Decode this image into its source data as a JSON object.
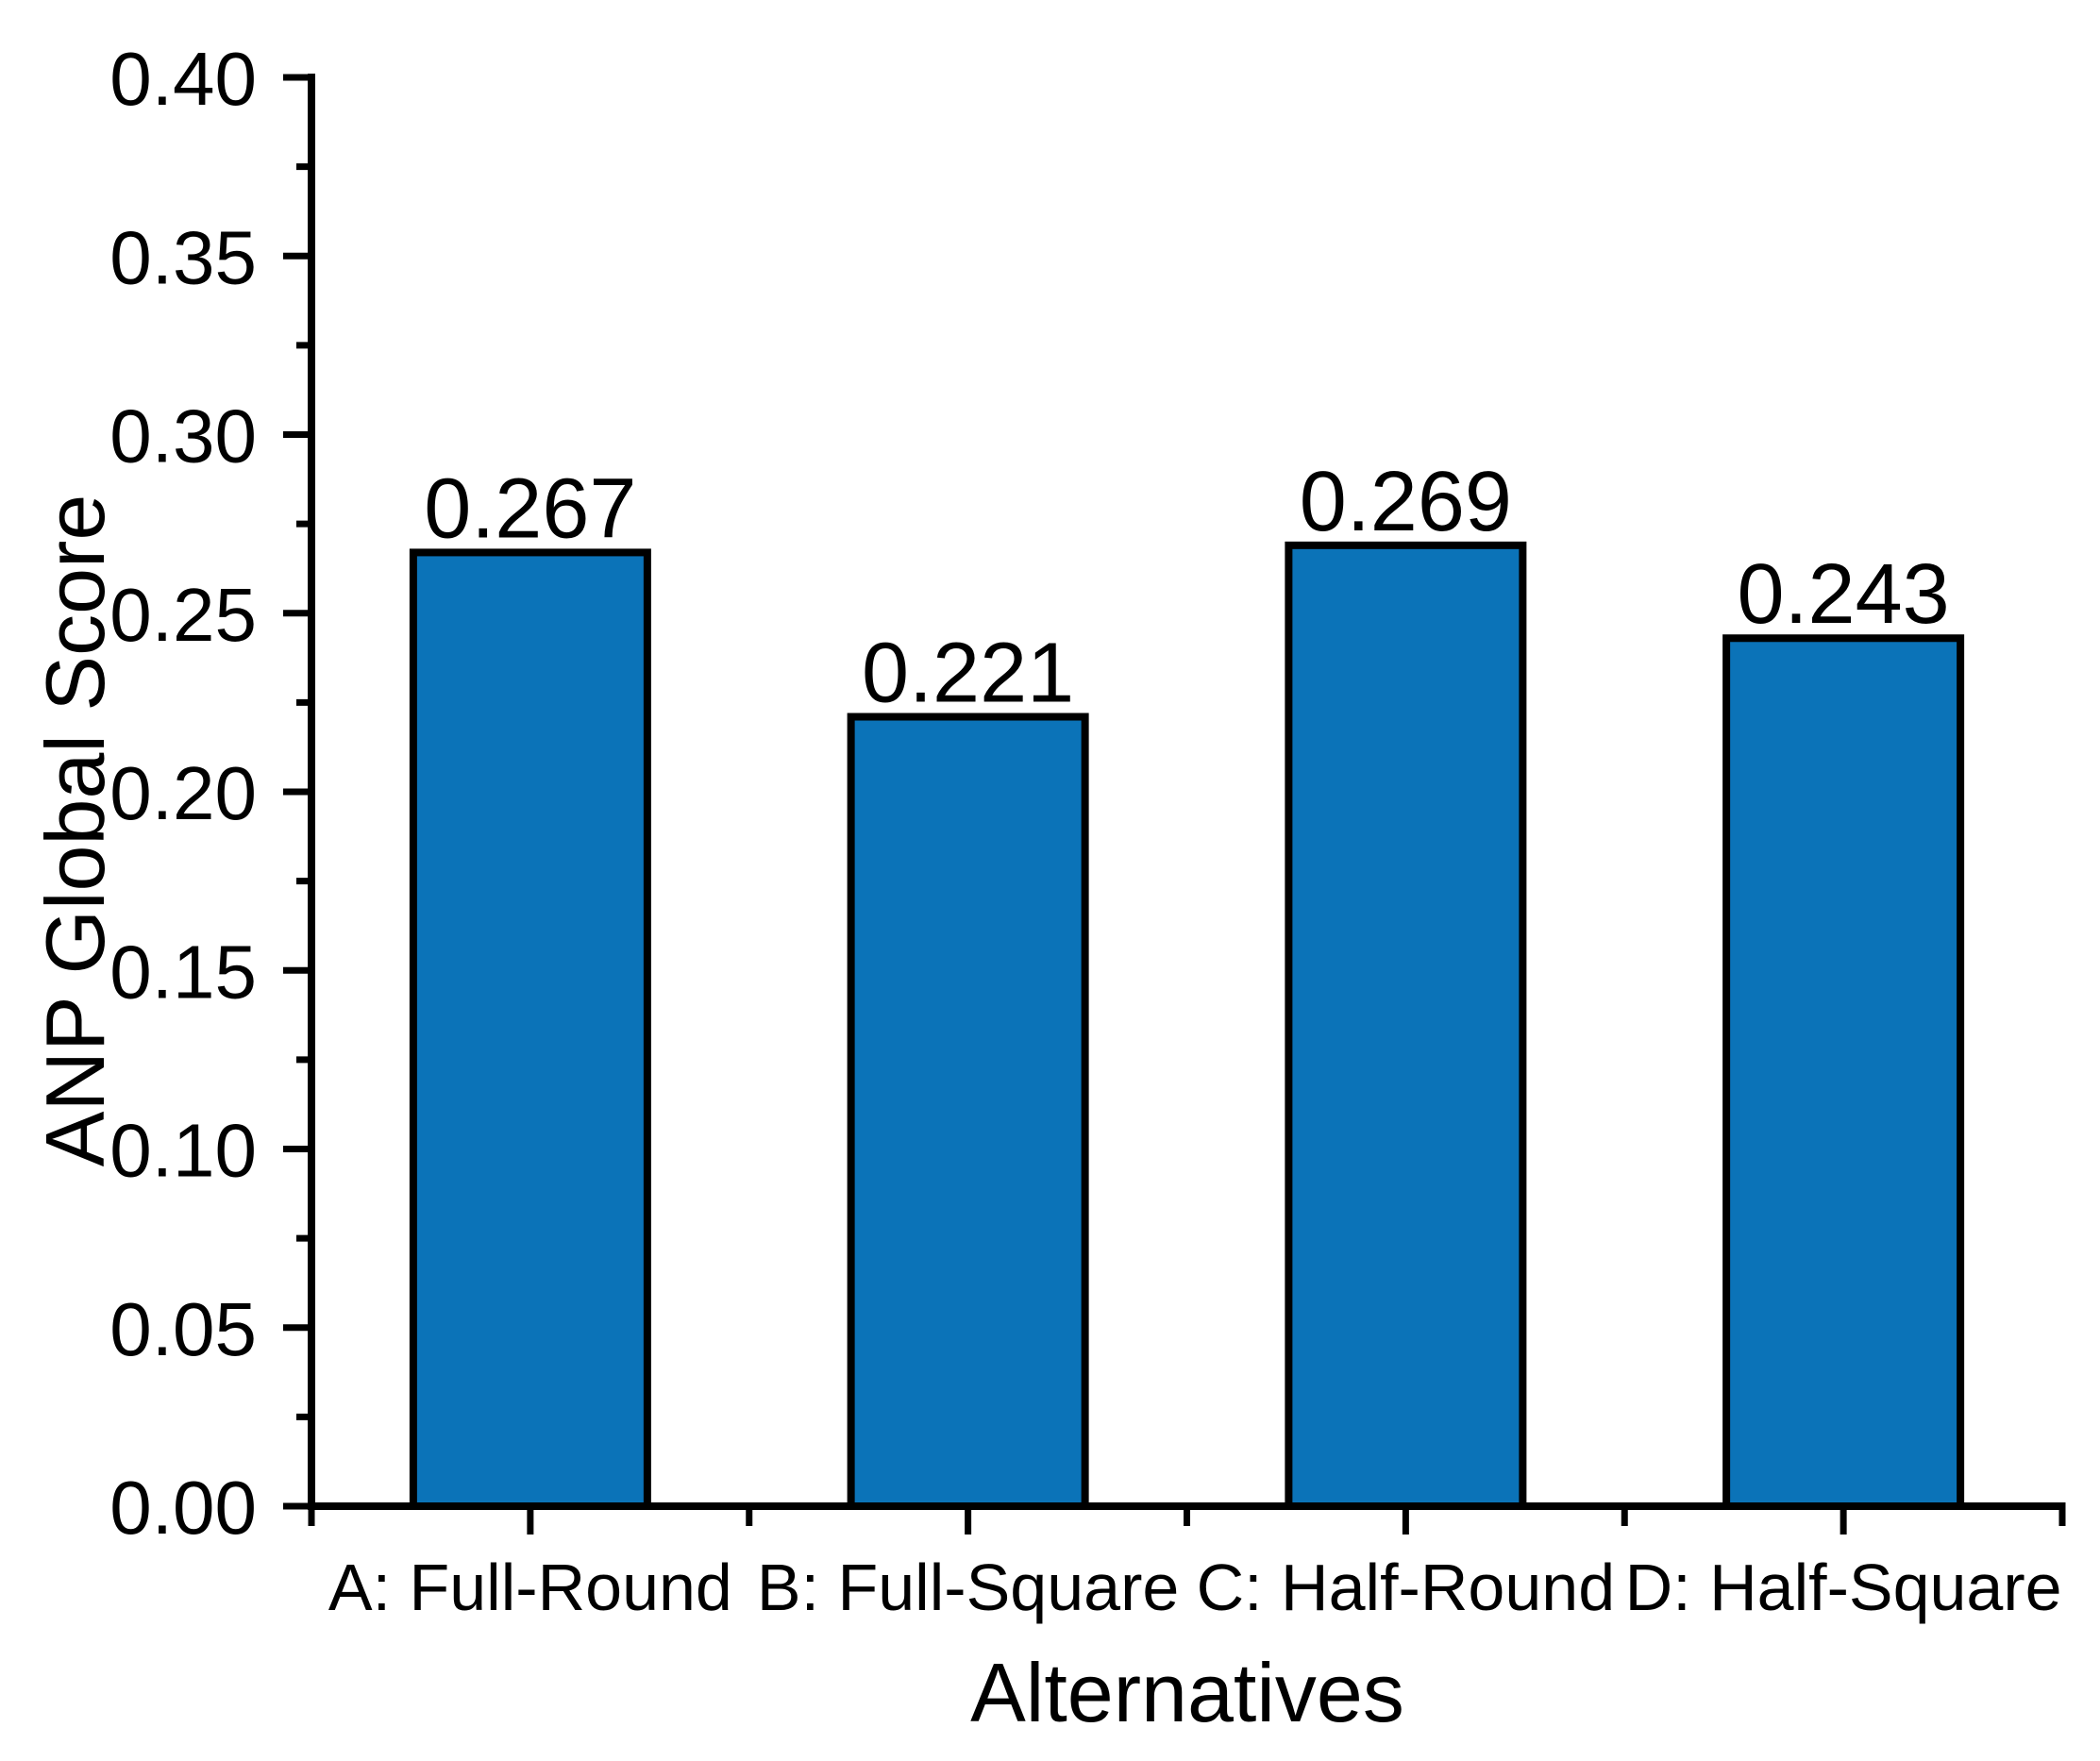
{
  "chart_data": {
    "type": "bar",
    "title": "",
    "categories": [
      "A: Full-Round",
      "B: Full-Square",
      "C: Half-Round",
      "D: Half-Square"
    ],
    "values": [
      0.267,
      0.221,
      0.269,
      0.243
    ],
    "bar_value_labels": [
      "0.267",
      "0.221",
      "0.269",
      "0.243"
    ],
    "xlabel": "Alternatives",
    "ylabel": "ANP Global Score",
    "ylim": [
      0.0,
      0.4
    ],
    "y_major_tick_step": 0.05,
    "y_minor_tick_step": 0.025,
    "y_tick_labels": [
      "0.00",
      "0.05",
      "0.10",
      "0.15",
      "0.20",
      "0.25",
      "0.30",
      "0.35",
      "0.40"
    ],
    "x_minor_ticks_at_category_boundaries": true,
    "grid": false,
    "legend": "none",
    "colors": {
      "bar_fill": "#0b73b8",
      "bar_border": "#000000",
      "axis": "#000000",
      "text": "#000000",
      "background": "#ffffff"
    }
  }
}
